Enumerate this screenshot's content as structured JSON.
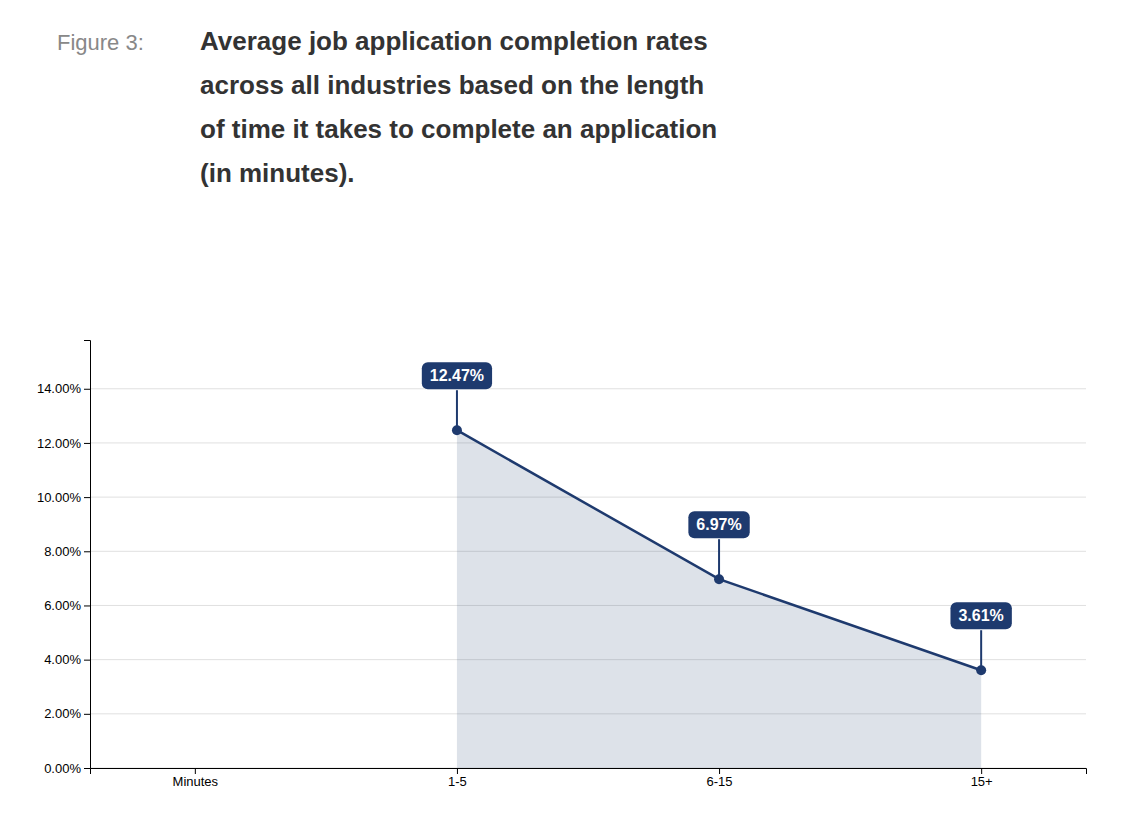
{
  "chart_data": {
    "type": "line",
    "title_prefix": "Figure 3:",
    "title": [
      "Average job application completion rates",
      "across all industries based on the length",
      "of time it takes to complete an application",
      "(in minutes)."
    ],
    "categories": [
      "Minutes",
      "1-5",
      "6-15",
      "15+"
    ],
    "values": [
      null,
      12.47,
      6.97,
      3.61
    ],
    "value_labels": [
      null,
      "12.47%",
      "6.97%",
      "3.61%"
    ],
    "data_labels": true,
    "color": "#1e3a6e",
    "marker": "circle",
    "ylim": [
      0,
      15.8
    ],
    "yticks": [
      {
        "value": 0,
        "label": "0.00%"
      },
      {
        "value": 2,
        "label": "2.00%"
      },
      {
        "value": 4,
        "label": "4.00%"
      },
      {
        "value": 6,
        "label": "6.00%"
      },
      {
        "value": 8,
        "label": "8.00%"
      },
      {
        "value": 10,
        "label": "10.00%"
      },
      {
        "value": 12,
        "label": "12.00%"
      },
      {
        "value": 14,
        "label": "14.00%"
      }
    ],
    "grid": true
  }
}
